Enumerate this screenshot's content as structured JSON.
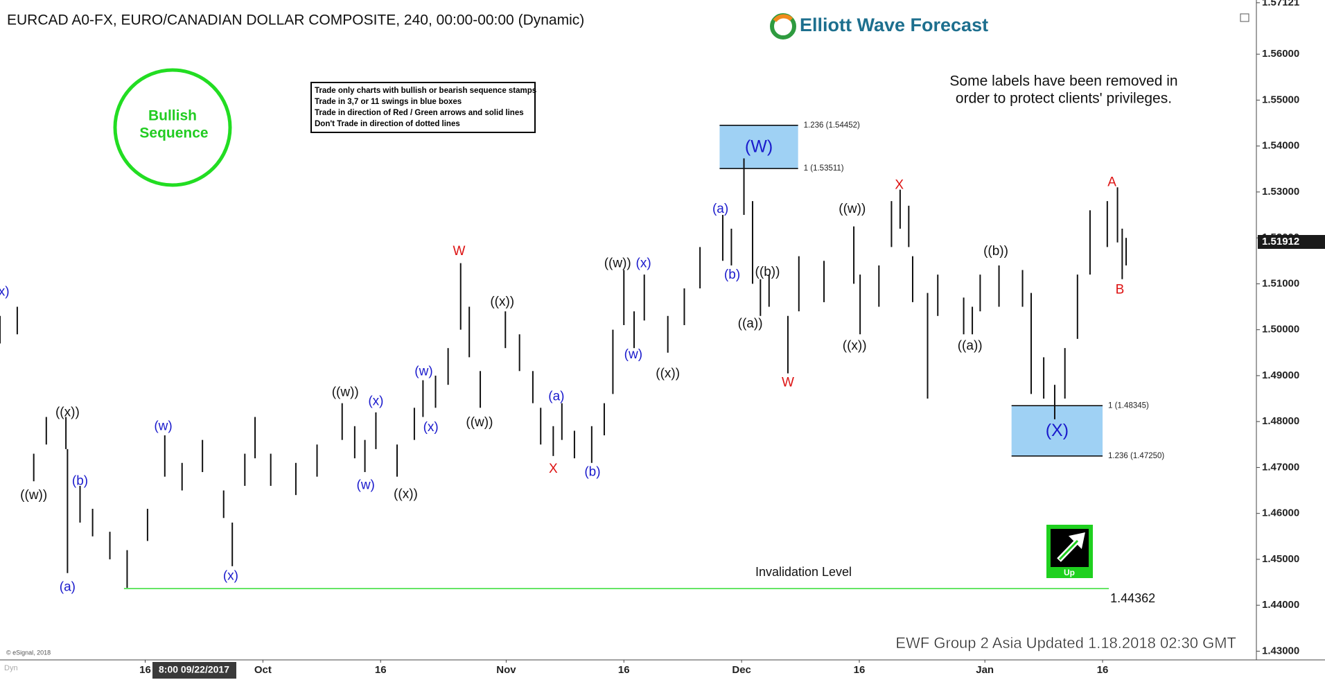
{
  "chart_data": {
    "type": "ohlc",
    "title": "EURCAD A0-FX, EURO/CANADIAN DOLLAR COMPOSITE, 240, 00:00-00:00 (Dynamic)",
    "color": "#111111",
    "x": [
      240.5,
      242.7,
      244.8,
      246.4,
      248.9,
      249.1,
      250.7,
      252.3,
      254.5,
      256.7,
      259.3,
      261.5,
      263.7,
      266.3,
      269.0,
      270.1,
      271.7,
      273.0,
      275.0,
      278.2,
      280.9,
      284.1,
      285.7,
      287.0,
      288.4,
      291.1,
      293.3,
      294.4,
      296.0,
      297.6,
      299.2,
      300.3,
      301.7,
      304.9,
      306.7,
      308.4,
      309.4,
      311.0,
      312.1,
      313.7,
      315.9,
      317.5,
      318.6,
      320.0,
      321.3,
      322.6,
      325.6,
      327.7,
      329.7,
      332.6,
      333.7,
      335.3,
      336.4,
      337.4,
      338.5,
      340.9,
      342.3,
      345.5,
      349.3,
      350.1,
      352.5,
      354.1,
      355.2,
      356.3,
      356.8,
      358.7,
      360.0,
      363.3,
      364.4,
      365.4,
      367.8,
      370.8,
      371.9,
      373.5,
      374.9,
      376.2,
      377.8,
      379.4,
      381.6,
      382.9,
      383.5,
      384.0
    ],
    "high": [
      1.503,
      1.505,
      1.473,
      1.481,
      1.481,
      1.474,
      1.466,
      1.461,
      1.456,
      1.452,
      1.461,
      1.477,
      1.471,
      1.476,
      1.465,
      1.458,
      1.473,
      1.481,
      1.473,
      1.471,
      1.475,
      1.484,
      1.479,
      1.476,
      1.482,
      1.475,
      1.483,
      1.489,
      1.49,
      1.496,
      1.5145,
      1.505,
      1.491,
      1.504,
      1.499,
      1.491,
      1.483,
      1.479,
      1.484,
      1.478,
      1.479,
      1.484,
      1.5,
      1.513,
      1.504,
      1.512,
      1.503,
      1.509,
      1.518,
      1.525,
      1.522,
      1.5373,
      1.528,
      1.511,
      1.512,
      1.503,
      1.516,
      1.515,
      1.5225,
      1.512,
      1.514,
      1.528,
      1.5305,
      1.527,
      1.516,
      1.508,
      1.512,
      1.507,
      1.505,
      1.512,
      1.514,
      1.513,
      1.508,
      1.494,
      1.488,
      1.496,
      1.512,
      1.526,
      1.528,
      1.531,
      1.522,
      1.52
    ],
    "low": [
      1.497,
      1.499,
      1.467,
      1.475,
      1.474,
      1.447,
      1.458,
      1.455,
      1.45,
      1.4438,
      1.454,
      1.468,
      1.465,
      1.469,
      1.459,
      1.4485,
      1.466,
      1.472,
      1.466,
      1.464,
      1.468,
      1.476,
      1.472,
      1.469,
      1.474,
      1.468,
      1.476,
      1.481,
      1.483,
      1.488,
      1.5,
      1.494,
      1.483,
      1.496,
      1.491,
      1.484,
      1.475,
      1.4725,
      1.476,
      1.472,
      1.471,
      1.477,
      1.486,
      1.501,
      1.496,
      1.502,
      1.495,
      1.501,
      1.509,
      1.515,
      1.514,
      1.525,
      1.51,
      1.503,
      1.505,
      1.4905,
      1.504,
      1.506,
      1.51,
      1.499,
      1.505,
      1.518,
      1.522,
      1.518,
      1.506,
      1.485,
      1.503,
      1.499,
      1.499,
      1.504,
      1.505,
      1.505,
      1.486,
      1.485,
      1.4805,
      1.485,
      1.498,
      1.512,
      1.518,
      1.519,
      1.511,
      1.514
    ],
    "xlim": [
      240.5,
      400.6
    ],
    "ylim": [
      1.4281,
      1.5718
    ],
    "xticks": [
      {
        "value": 259,
        "label": "16"
      },
      {
        "value": 274,
        "label": "Oct"
      },
      {
        "value": 289,
        "label": "16"
      },
      {
        "value": 305,
        "label": "Nov"
      },
      {
        "value": 320,
        "label": "16"
      },
      {
        "value": 335,
        "label": "Dec"
      },
      {
        "value": 350,
        "label": "16"
      },
      {
        "value": 366,
        "label": "Jan"
      },
      {
        "value": 381,
        "label": "16"
      }
    ],
    "yticks": [
      {
        "value": 1.43,
        "label": "1.43000"
      },
      {
        "value": 1.44,
        "label": "1.44000"
      },
      {
        "value": 1.45,
        "label": "1.45000"
      },
      {
        "value": 1.46,
        "label": "1.46000"
      },
      {
        "value": 1.47,
        "label": "1.47000"
      },
      {
        "value": 1.48,
        "label": "1.48000"
      },
      {
        "value": 1.49,
        "label": "1.49000"
      },
      {
        "value": 1.5,
        "label": "1.50000"
      },
      {
        "value": 1.51,
        "label": "1.51000"
      },
      {
        "value": 1.52,
        "label": "1.52000"
      },
      {
        "value": 1.53,
        "label": "1.53000"
      },
      {
        "value": 1.54,
        "label": "1.54000"
      },
      {
        "value": 1.55,
        "label": "1.55000"
      },
      {
        "value": 1.56,
        "label": "1.56000"
      },
      1.57121
    ],
    "cursor_label": "8:00 09/22/2017",
    "last_price": 1.51912,
    "wave_labels": [
      {
        "text": "x)",
        "x": 241.0,
        "y": 1.5082,
        "color": "#1a1acc"
      },
      {
        "text": "((w))",
        "x": 244.8,
        "y": 1.4639,
        "color": "#111111"
      },
      {
        "text": "((x))",
        "x": 249.1,
        "y": 1.4819,
        "color": "#111111"
      },
      {
        "text": "(b)",
        "x": 250.7,
        "y": 1.467,
        "color": "#1a1acc"
      },
      {
        "text": "(a)",
        "x": 249.1,
        "y": 1.4439,
        "color": "#1a1acc"
      },
      {
        "text": "(w)",
        "x": 261.3,
        "y": 1.4789,
        "color": "#1a1acc"
      },
      {
        "text": "(x)",
        "x": 269.9,
        "y": 1.4463,
        "color": "#1a1acc"
      },
      {
        "text": "((w))",
        "x": 284.5,
        "y": 1.4863,
        "color": "#111111"
      },
      {
        "text": "(x)",
        "x": 288.4,
        "y": 1.4843,
        "color": "#1a1acc"
      },
      {
        "text": "(w)",
        "x": 287.1,
        "y": 1.4661,
        "color": "#1a1acc"
      },
      {
        "text": "((x))",
        "x": 292.2,
        "y": 1.4641,
        "color": "#111111"
      },
      {
        "text": "(w)",
        "x": 294.5,
        "y": 1.4908,
        "color": "#1a1acc"
      },
      {
        "text": "(x)",
        "x": 295.4,
        "y": 1.4787,
        "color": "#1a1acc"
      },
      {
        "text": "W",
        "x": 299.0,
        "y": 1.517,
        "color": "#dd1111"
      },
      {
        "text": "((x))",
        "x": 304.5,
        "y": 1.506,
        "color": "#111111"
      },
      {
        "text": "((w))",
        "x": 301.6,
        "y": 1.4797,
        "color": "#111111"
      },
      {
        "text": "(a)",
        "x": 311.4,
        "y": 1.4854,
        "color": "#1a1acc"
      },
      {
        "text": "X",
        "x": 311.0,
        "y": 1.4696,
        "color": "#dd1111"
      },
      {
        "text": "(b)",
        "x": 316.0,
        "y": 1.4689,
        "color": "#1a1acc"
      },
      {
        "text": "((w))",
        "x": 319.2,
        "y": 1.5144,
        "color": "#111111"
      },
      {
        "text": "(x)",
        "x": 322.5,
        "y": 1.5144,
        "color": "#1a1acc"
      },
      {
        "text": "(w)",
        "x": 321.2,
        "y": 1.4945,
        "color": "#1a1acc"
      },
      {
        "text": "((x))",
        "x": 325.6,
        "y": 1.4904,
        "color": "#111111"
      },
      {
        "text": "(a)",
        "x": 332.3,
        "y": 1.5262,
        "color": "#1a1acc"
      },
      {
        "text": "(b)",
        "x": 333.8,
        "y": 1.5119,
        "color": "#1a1acc"
      },
      {
        "text": "((b))",
        "x": 338.3,
        "y": 1.5125,
        "color": "#111111"
      },
      {
        "text": "((a))",
        "x": 336.1,
        "y": 1.5012,
        "color": "#111111"
      },
      {
        "text": "W",
        "x": 340.9,
        "y": 1.4884,
        "color": "#dd1111"
      },
      {
        "text": "((w))",
        "x": 349.1,
        "y": 1.5262,
        "color": "#111111"
      },
      {
        "text": "((x))",
        "x": 349.4,
        "y": 1.4964,
        "color": "#111111"
      },
      {
        "text": "X",
        "x": 355.1,
        "y": 1.5314,
        "color": "#dd1111"
      },
      {
        "text": "((b))",
        "x": 367.4,
        "y": 1.517,
        "color": "#111111"
      },
      {
        "text": "((a))",
        "x": 364.1,
        "y": 1.4964,
        "color": "#111111"
      },
      {
        "text": "A",
        "x": 382.2,
        "y": 1.532,
        "color": "#dd1111"
      },
      {
        "text": "B",
        "x": 383.2,
        "y": 1.5086,
        "color": "#dd1111"
      }
    ],
    "target_boxes": [
      {
        "label": "(W)",
        "x_start": 332.2,
        "x_end": 342.2,
        "color": "#8ec9f2",
        "levels": [
          {
            "value": 1.54452,
            "label": "1.236 (1.54452)"
          },
          {
            "value": 1.53511,
            "label": "1 (1.53511)"
          }
        ]
      },
      {
        "label": "(X)",
        "x_start": 369.4,
        "x_end": 381.0,
        "color": "#8ec9f2",
        "levels": [
          {
            "value": 1.48345,
            "label": "1 (1.48345)"
          },
          {
            "value": 1.4725,
            "label": "1.236 (1.47250)"
          }
        ]
      }
    ],
    "invalidation": {
      "value": 1.44362,
      "label": "Invalidation Level",
      "x_start": 256.3,
      "x_end": 381.8,
      "color": "#33dd33"
    }
  },
  "logo": "Elliott Wave Forecast",
  "stamp": [
    "Bullish",
    "Sequence"
  ],
  "rules": [
    "Trade only charts with bullish or bearish sequence stamps",
    "Trade in 3,7 or 11 swings in blue boxes",
    "Trade in direction of Red / Green arrows and solid lines",
    "Don't Trade in direction of dotted lines"
  ],
  "notice": [
    "Some labels have been removed in",
    "order to protect clients' privileges."
  ],
  "signal": "Up",
  "footer": "EWF Group 2 Asia Updated 1.18.2018 02:30 GMT",
  "copyright": "© eSignal, 2018",
  "mode": "Dyn"
}
